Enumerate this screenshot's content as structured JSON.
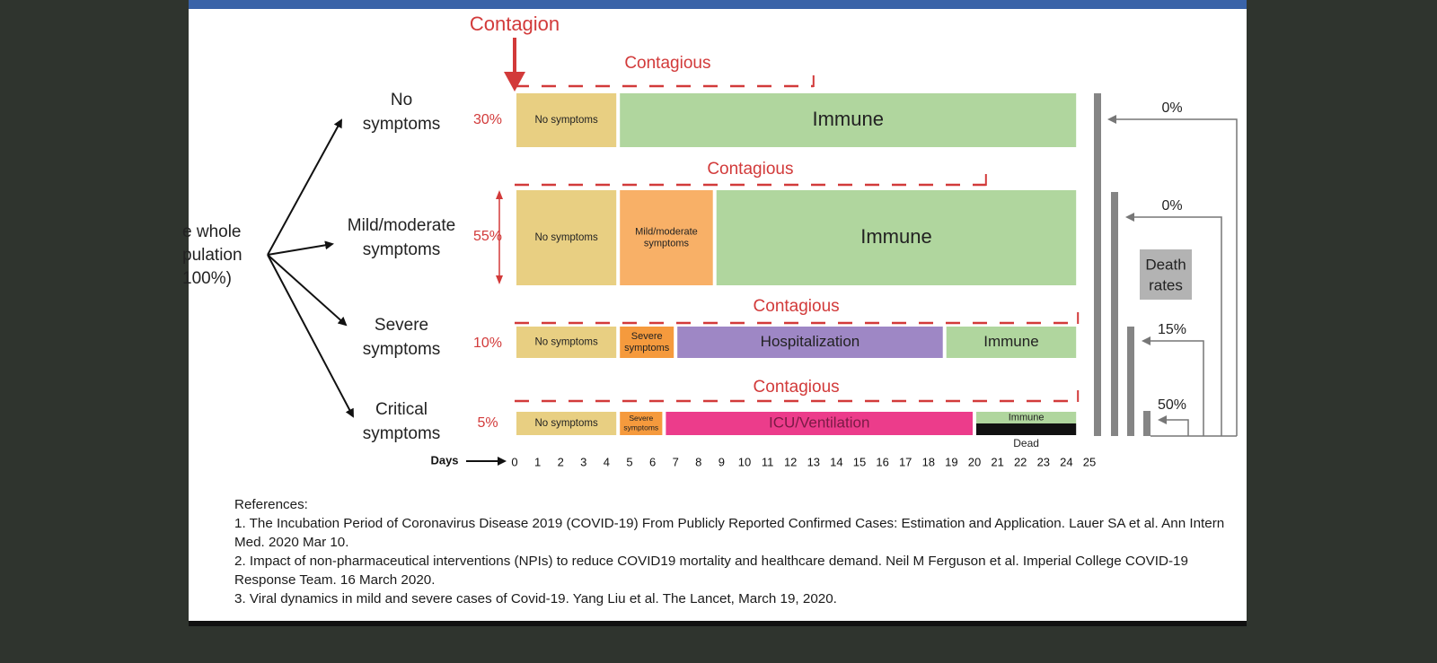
{
  "colors": {
    "no_symptoms": "#e8cf82",
    "immune": "#b0d69e",
    "mild": "#f8b067",
    "severe": "#f59a3d",
    "hospital": "#9e87c5",
    "icu": "#ec3c8b",
    "dead": "#111111",
    "contagion_red": "#d23a3a",
    "death_bar": "#858585",
    "death_box": "#b3b3b3"
  },
  "population_label": [
    "e whole",
    "pulation",
    "100%)"
  ],
  "contagion_label": "Contagion",
  "contagious_label": "Contagious",
  "days_label": "Days",
  "days": [
    "0",
    "1",
    "2",
    "3",
    "4",
    "5",
    "6",
    "7",
    "8",
    "9",
    "10",
    "11",
    "12",
    "13",
    "14",
    "15",
    "16",
    "17",
    "18",
    "19",
    "20",
    "21",
    "22",
    "23",
    "24",
    "25"
  ],
  "death_rates_label": [
    "Death",
    "rates"
  ],
  "dead_label": "Dead",
  "groups": [
    {
      "name_lines": [
        "No",
        "symptoms"
      ],
      "percent": "30%",
      "contagious_end_day": 13,
      "death_rate": "0%",
      "segments": [
        {
          "label": "No symptoms",
          "start": 0,
          "end": 4.5,
          "color": "no_symptoms"
        },
        {
          "label": "Immune",
          "start": 4.5,
          "end": 24.5,
          "color": "immune"
        }
      ]
    },
    {
      "name_lines": [
        "Mild/moderate",
        "symptoms"
      ],
      "percent": "55%",
      "contagious_end_day": 20.5,
      "death_rate": "0%",
      "segments": [
        {
          "label": "No symptoms",
          "start": 0,
          "end": 4.5,
          "color": "no_symptoms"
        },
        {
          "label": "Mild/moderate symptoms",
          "start": 4.5,
          "end": 8.7,
          "color": "mild"
        },
        {
          "label": "Immune",
          "start": 8.7,
          "end": 24.5,
          "color": "immune"
        }
      ]
    },
    {
      "name_lines": [
        "Severe",
        "symptoms"
      ],
      "percent": "10%",
      "contagious_end_day": 24.5,
      "death_rate": "15%",
      "segments": [
        {
          "label": "No symptoms",
          "start": 0,
          "end": 4.5,
          "color": "no_symptoms"
        },
        {
          "label": "Severe symptoms",
          "start": 4.5,
          "end": 7,
          "color": "severe"
        },
        {
          "label": "Hospitalization",
          "start": 7,
          "end": 18.7,
          "color": "hospital"
        },
        {
          "label": "Immune",
          "start": 18.7,
          "end": 24.5,
          "color": "immune"
        }
      ]
    },
    {
      "name_lines": [
        "Critical",
        "symptoms"
      ],
      "percent": "5%",
      "contagious_end_day": 24.5,
      "death_rate": "50%",
      "segments": [
        {
          "label": "No symptoms",
          "start": 0,
          "end": 4.5,
          "color": "no_symptoms"
        },
        {
          "label": "Severe symptoms",
          "start": 4.5,
          "end": 6.5,
          "color": "severe"
        },
        {
          "label": "ICU/Ventilation",
          "start": 6.5,
          "end": 20,
          "color": "icu"
        }
      ],
      "split_segment": {
        "start": 20,
        "end": 24.5,
        "top_label": "Immune",
        "top_color": "immune",
        "bottom_color": "dead"
      }
    }
  ],
  "references": {
    "heading": "References:",
    "items": [
      "1. The Incubation Period of Coronavirus Disease 2019 (COVID-19) From Publicly Reported Confirmed Cases: Estimation and Application. Lauer SA et al. Ann Intern Med. 2020 Mar 10.",
      "2. Impact of non-pharmaceutical interventions (NPIs) to reduce COVID19 mortality and healthcare demand. Neil M Ferguson et al. Imperial College COVID-19 Response Team. 16 March 2020.",
      "3. Viral dynamics in mild and severe cases of Covid-19. Yang Liu et al. The Lancet, March 19, 2020."
    ]
  }
}
